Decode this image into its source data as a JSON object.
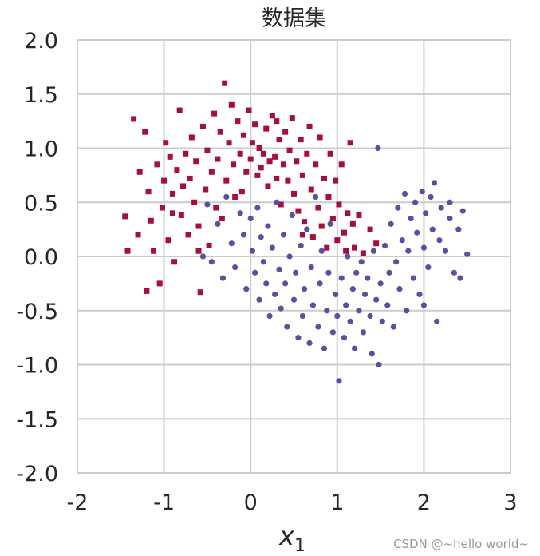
{
  "chart_data": {
    "type": "scatter",
    "title": "数据集",
    "xlabel_main": "x",
    "xlabel_sub": "1",
    "ylabel": "",
    "xlim": [
      -2,
      3
    ],
    "ylim": [
      -2,
      2
    ],
    "xticks": [
      -2,
      -1,
      0,
      1,
      2,
      3
    ],
    "xtick_labels": [
      "-2",
      "-1",
      "0",
      "1",
      "2",
      "3"
    ],
    "yticks": [
      2.0,
      1.5,
      1.0,
      0.5,
      0.0,
      -0.5,
      -1.0,
      -1.5,
      -2.0
    ],
    "ytick_labels": [
      "2.0",
      "1.5",
      "1.0",
      "0.5",
      "0.0",
      "-0.5",
      "-1.0",
      "-1.5",
      "-2.0"
    ],
    "grid": true,
    "series": [
      {
        "marker": "square",
        "color": "#a50f3d",
        "points": [
          [
            -1.45,
            0.37
          ],
          [
            -1.42,
            0.05
          ],
          [
            -1.35,
            1.27
          ],
          [
            -1.3,
            0.2
          ],
          [
            -1.28,
            0.78
          ],
          [
            -1.22,
            1.15
          ],
          [
            -1.2,
            -0.32
          ],
          [
            -1.18,
            0.6
          ],
          [
            -1.15,
            0.33
          ],
          [
            -1.12,
            0.05
          ],
          [
            -1.08,
            0.85
          ],
          [
            -1.05,
            -0.25
          ],
          [
            -1.02,
            0.45
          ],
          [
            -1.0,
            0.7
          ],
          [
            -0.98,
            1.05
          ],
          [
            -0.95,
            0.15
          ],
          [
            -0.93,
            0.92
          ],
          [
            -0.9,
            0.58
          ],
          [
            -0.88,
            -0.05
          ],
          [
            -0.85,
            0.8
          ],
          [
            -0.82,
            1.35
          ],
          [
            -0.8,
            0.38
          ],
          [
            -0.78,
            0.65
          ],
          [
            -0.75,
            0.95
          ],
          [
            -0.72,
            0.2
          ],
          [
            -0.7,
            0.72
          ],
          [
            -0.68,
            1.1
          ],
          [
            -0.65,
            0.5
          ],
          [
            -0.63,
            0.88
          ],
          [
            -0.6,
            0.28
          ],
          [
            -0.58,
            -0.33
          ],
          [
            -0.55,
            1.2
          ],
          [
            -0.52,
            0.62
          ],
          [
            -0.5,
            0.98
          ],
          [
            -0.48,
            0.1
          ],
          [
            -0.45,
            0.78
          ],
          [
            -0.42,
            1.32
          ],
          [
            -0.4,
            0.45
          ],
          [
            -0.38,
            0.9
          ],
          [
            -0.35,
            1.15
          ],
          [
            -0.33,
            0.35
          ],
          [
            -0.3,
            1.6
          ],
          [
            -0.28,
            0.7
          ],
          [
            -0.25,
            1.05
          ],
          [
            -0.22,
            1.4
          ],
          [
            -0.2,
            0.85
          ],
          [
            -0.18,
            0.55
          ],
          [
            -0.15,
            1.25
          ],
          [
            -0.12,
            0.95
          ],
          [
            -0.1,
            0.6
          ],
          [
            -0.08,
            1.12
          ],
          [
            -0.05,
            0.78
          ],
          [
            -0.02,
            1.35
          ],
          [
            0.0,
            0.9
          ],
          [
            0.02,
            1.05
          ],
          [
            0.05,
            1.22
          ],
          [
            0.08,
            0.75
          ],
          [
            0.1,
            1.0
          ],
          [
            0.12,
            0.82
          ],
          [
            0.15,
            0.95
          ],
          [
            0.18,
            1.18
          ],
          [
            0.2,
            0.65
          ],
          [
            0.22,
            0.88
          ],
          [
            0.25,
            1.3
          ],
          [
            0.28,
            0.92
          ],
          [
            0.3,
            0.72
          ],
          [
            0.33,
            1.08
          ],
          [
            0.35,
            0.48
          ],
          [
            0.38,
            0.85
          ],
          [
            0.4,
            1.15
          ],
          [
            0.43,
            0.7
          ],
          [
            0.45,
            0.98
          ],
          [
            0.48,
            1.28
          ],
          [
            0.5,
            0.58
          ],
          [
            0.53,
            0.88
          ],
          [
            0.55,
            0.42
          ],
          [
            0.58,
            1.08
          ],
          [
            0.6,
            0.75
          ],
          [
            0.62,
            0.32
          ],
          [
            0.65,
            0.95
          ],
          [
            0.68,
            1.2
          ],
          [
            0.7,
            0.62
          ],
          [
            0.72,
            0.18
          ],
          [
            0.75,
            0.85
          ],
          [
            0.78,
            0.45
          ],
          [
            0.8,
            1.1
          ],
          [
            0.82,
            0.28
          ],
          [
            0.85,
            0.72
          ],
          [
            0.88,
            0.08
          ],
          [
            0.9,
            0.55
          ],
          [
            0.92,
            0.95
          ],
          [
            0.95,
            0.35
          ],
          [
            0.98,
            0.7
          ],
          [
            1.0,
            0.15
          ],
          [
            1.02,
            0.48
          ],
          [
            1.05,
            0.85
          ],
          [
            1.08,
            0.22
          ],
          [
            1.1,
            0.05
          ],
          [
            1.12,
            0.4
          ],
          [
            1.15,
            1.05
          ],
          [
            1.18,
            0.3
          ],
          [
            1.2,
            0.08
          ],
          [
            1.25,
            0.38
          ],
          [
            1.3,
            0.03
          ],
          [
            1.38,
            0.25
          ],
          [
            1.45,
            0.12
          ],
          [
            -0.6,
            0.05
          ],
          [
            -0.9,
            0.4
          ],
          [
            0.6,
            0.2
          ],
          [
            0.3,
            1.25
          ]
        ]
      },
      {
        "marker": "circle",
        "color": "#5b4fa2",
        "points": [
          [
            -0.55,
            0.0
          ],
          [
            -0.5,
            0.48
          ],
          [
            -0.45,
            -0.05
          ],
          [
            -0.38,
            0.3
          ],
          [
            -0.32,
            -0.2
          ],
          [
            -0.28,
            0.55
          ],
          [
            -0.22,
            0.12
          ],
          [
            -0.18,
            -0.1
          ],
          [
            -0.12,
            0.4
          ],
          [
            -0.08,
            0.2
          ],
          [
            -0.05,
            -0.3
          ],
          [
            0.0,
            0.35
          ],
          [
            0.02,
            0.05
          ],
          [
            0.05,
            -0.15
          ],
          [
            0.08,
            0.45
          ],
          [
            0.1,
            -0.4
          ],
          [
            0.12,
            0.18
          ],
          [
            0.15,
            -0.05
          ],
          [
            0.18,
            -0.25
          ],
          [
            0.2,
            0.28
          ],
          [
            0.22,
            -0.55
          ],
          [
            0.25,
            0.08
          ],
          [
            0.28,
            -0.35
          ],
          [
            0.3,
            0.5
          ],
          [
            0.33,
            -0.12
          ],
          [
            0.35,
            -0.48
          ],
          [
            0.38,
            0.2
          ],
          [
            0.4,
            -0.25
          ],
          [
            0.42,
            -0.65
          ],
          [
            0.45,
            0.0
          ],
          [
            0.48,
            0.38
          ],
          [
            0.5,
            -0.4
          ],
          [
            0.52,
            -0.15
          ],
          [
            0.55,
            -0.75
          ],
          [
            0.58,
            0.1
          ],
          [
            0.6,
            -0.55
          ],
          [
            0.62,
            -0.3
          ],
          [
            0.65,
            0.25
          ],
          [
            0.68,
            -0.8
          ],
          [
            0.7,
            -0.1
          ],
          [
            0.72,
            -0.45
          ],
          [
            0.75,
            0.55
          ],
          [
            0.78,
            -0.65
          ],
          [
            0.8,
            -0.25
          ],
          [
            0.82,
            0.05
          ],
          [
            0.85,
            -0.85
          ],
          [
            0.88,
            -0.5
          ],
          [
            0.9,
            -0.15
          ],
          [
            0.92,
            0.3
          ],
          [
            0.95,
            -0.7
          ],
          [
            0.98,
            -0.35
          ],
          [
            1.0,
            -0.55
          ],
          [
            1.02,
            -1.15
          ],
          [
            1.05,
            -0.2
          ],
          [
            1.08,
            -0.75
          ],
          [
            1.1,
            -0.45
          ],
          [
            1.12,
            0.0
          ],
          [
            1.15,
            -0.6
          ],
          [
            1.18,
            -0.3
          ],
          [
            1.2,
            -0.85
          ],
          [
            1.22,
            -0.15
          ],
          [
            1.25,
            -0.5
          ],
          [
            1.28,
            -0.05
          ],
          [
            1.3,
            -0.7
          ],
          [
            1.32,
            -0.35
          ],
          [
            1.35,
            -0.2
          ],
          [
            1.38,
            -0.55
          ],
          [
            1.4,
            -0.9
          ],
          [
            1.42,
            0.05
          ],
          [
            1.45,
            -0.4
          ],
          [
            1.47,
            1.0
          ],
          [
            1.48,
            -1.0
          ],
          [
            1.5,
            -0.25
          ],
          [
            1.52,
            -0.6
          ],
          [
            1.55,
            0.1
          ],
          [
            1.58,
            -0.45
          ],
          [
            1.6,
            -0.15
          ],
          [
            1.62,
            0.3
          ],
          [
            1.65,
            -0.65
          ],
          [
            1.68,
            -0.05
          ],
          [
            1.7,
            0.45
          ],
          [
            1.72,
            -0.3
          ],
          [
            1.75,
            0.15
          ],
          [
            1.78,
            0.58
          ],
          [
            1.8,
            -0.5
          ],
          [
            1.82,
            0.05
          ],
          [
            1.85,
            0.35
          ],
          [
            1.88,
            -0.2
          ],
          [
            1.9,
            0.5
          ],
          [
            1.92,
            0.22
          ],
          [
            1.95,
            -0.35
          ],
          [
            1.98,
            0.6
          ],
          [
            2.0,
            0.08
          ],
          [
            2.02,
            0.4
          ],
          [
            2.05,
            -0.1
          ],
          [
            2.08,
            0.55
          ],
          [
            2.1,
            0.25
          ],
          [
            2.12,
            0.68
          ],
          [
            2.15,
            -0.6
          ],
          [
            2.18,
            0.15
          ],
          [
            2.2,
            0.45
          ],
          [
            2.25,
            0.05
          ],
          [
            2.3,
            0.5
          ],
          [
            2.35,
            -0.15
          ],
          [
            2.4,
            0.25
          ],
          [
            2.45,
            0.42
          ],
          [
            2.5,
            0.02
          ],
          [
            2.42,
            -0.2
          ],
          [
            2.3,
            0.35
          ],
          [
            2.0,
            -0.45
          ]
        ]
      }
    ]
  },
  "watermark": "CSDN @~hello world~"
}
